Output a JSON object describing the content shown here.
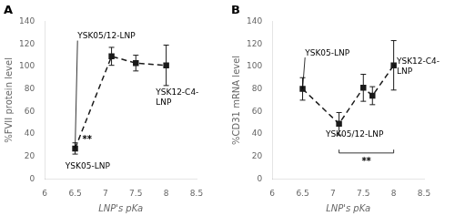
{
  "chart_data": [
    {
      "type": "line",
      "title": "A",
      "x": [
        6.5,
        7.1,
        7.5,
        8.0
      ],
      "values": [
        27,
        109,
        103,
        101
      ],
      "yerr": [
        5,
        8,
        7,
        18
      ],
      "color": "#1a1a1a",
      "marker": "square",
      "line_style": "dashed",
      "xlabel": "LNP's pKa",
      "ylabel": "%FVII protein level",
      "xlim": [
        6.0,
        8.5
      ],
      "ylim": [
        0,
        140
      ],
      "xticks": [
        6,
        6.5,
        7,
        7.5,
        8,
        8.5
      ],
      "yticks": [
        0,
        20,
        40,
        60,
        80,
        100,
        120,
        140
      ],
      "grid": false,
      "annotations": [
        {
          "text": "YSK05/12-LNP",
          "x": 6.54,
          "y": 123,
          "xy": [
            6.5,
            27
          ],
          "line_style": "solid"
        },
        {
          "text": "YSK05-LNP",
          "x": 6.34,
          "y": 7
        },
        {
          "text": "YSK12-C4-\nLNP",
          "x": 7.83,
          "y": 80
        },
        {
          "text": "**",
          "x": 6.62,
          "y": 31
        }
      ]
    },
    {
      "type": "line",
      "title": "B",
      "x": [
        6.5,
        7.1,
        7.5,
        7.65,
        8.0
      ],
      "values": [
        80,
        49,
        81,
        74,
        101
      ],
      "yerr": [
        10,
        10,
        12,
        8,
        22
      ],
      "color": "#1a1a1a",
      "marker": "square",
      "line_style": "dashed",
      "xlabel": "LNP's pKa",
      "ylabel": "%CD31 mRNA level",
      "xlim": [
        6.0,
        8.5
      ],
      "ylim": [
        0,
        140
      ],
      "xticks": [
        6,
        6.5,
        7,
        7.5,
        8,
        8.5
      ],
      "yticks": [
        0,
        20,
        40,
        60,
        80,
        100,
        120,
        140
      ],
      "grid": false,
      "annotations": [
        {
          "text": "YSK05-LNP",
          "x": 6.54,
          "y": 108,
          "xy": [
            6.5,
            80
          ],
          "line_style": "solid"
        },
        {
          "text": "YSK05/12-LNP",
          "x": 6.88,
          "y": 36
        },
        {
          "text": "YSK12-C4-\nLNP",
          "x": 8.05,
          "y": 100,
          "xy": [
            8.0,
            101
          ],
          "line_style": "dotted"
        },
        {
          "text": "**",
          "x": 7.55,
          "y": 19,
          "bracket": {
            "x": [
              7.1,
              8.0
            ],
            "y": 23,
            "h": 3
          }
        }
      ]
    }
  ]
}
